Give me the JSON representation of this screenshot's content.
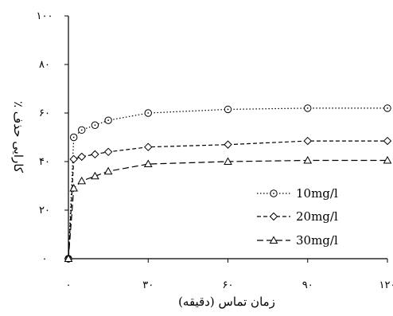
{
  "chart_data": {
    "type": "line",
    "xlabel": "زمان تماس (دقیقه)",
    "ylabel": "کارایی حذف ٪",
    "xlim": [
      0,
      120
    ],
    "ylim": [
      0,
      100
    ],
    "x_ticks": [
      {
        "value": 0,
        "label": "۰"
      },
      {
        "value": 30,
        "label": "۳۰"
      },
      {
        "value": 60,
        "label": "۶۰"
      },
      {
        "value": 90,
        "label": "۹۰"
      },
      {
        "value": 120,
        "label": "۱۲۰"
      }
    ],
    "y_ticks": [
      {
        "value": 0,
        "label": "۰"
      },
      {
        "value": 20,
        "label": "۲۰"
      },
      {
        "value": 40,
        "label": "۴۰"
      },
      {
        "value": 60,
        "label": "۶۰"
      },
      {
        "value": 80,
        "label": "۸۰"
      },
      {
        "value": 100,
        "label": "۱۰۰"
      }
    ],
    "grid": false,
    "legend_position": "bottom-right",
    "series": [
      {
        "name": "10mg/l",
        "marker": "circle",
        "line_style": "dotted",
        "x": [
          0,
          2,
          5,
          10,
          15,
          30,
          60,
          90,
          120
        ],
        "y": [
          0,
          50,
          53,
          55,
          57,
          60,
          61.5,
          62,
          62
        ]
      },
      {
        "name": "20mg/l",
        "marker": "diamond",
        "line_style": "dashed-short",
        "x": [
          0,
          2,
          5,
          10,
          15,
          30,
          60,
          90,
          120
        ],
        "y": [
          0,
          41,
          42,
          43,
          44,
          46,
          47,
          48.5,
          48.5
        ]
      },
      {
        "name": "30mg/l",
        "marker": "triangle",
        "line_style": "dashed-long",
        "x": [
          0,
          2,
          5,
          10,
          15,
          30,
          60,
          90,
          120
        ],
        "y": [
          0,
          29,
          32,
          34,
          36,
          39,
          40,
          40.5,
          40.5
        ]
      }
    ]
  }
}
